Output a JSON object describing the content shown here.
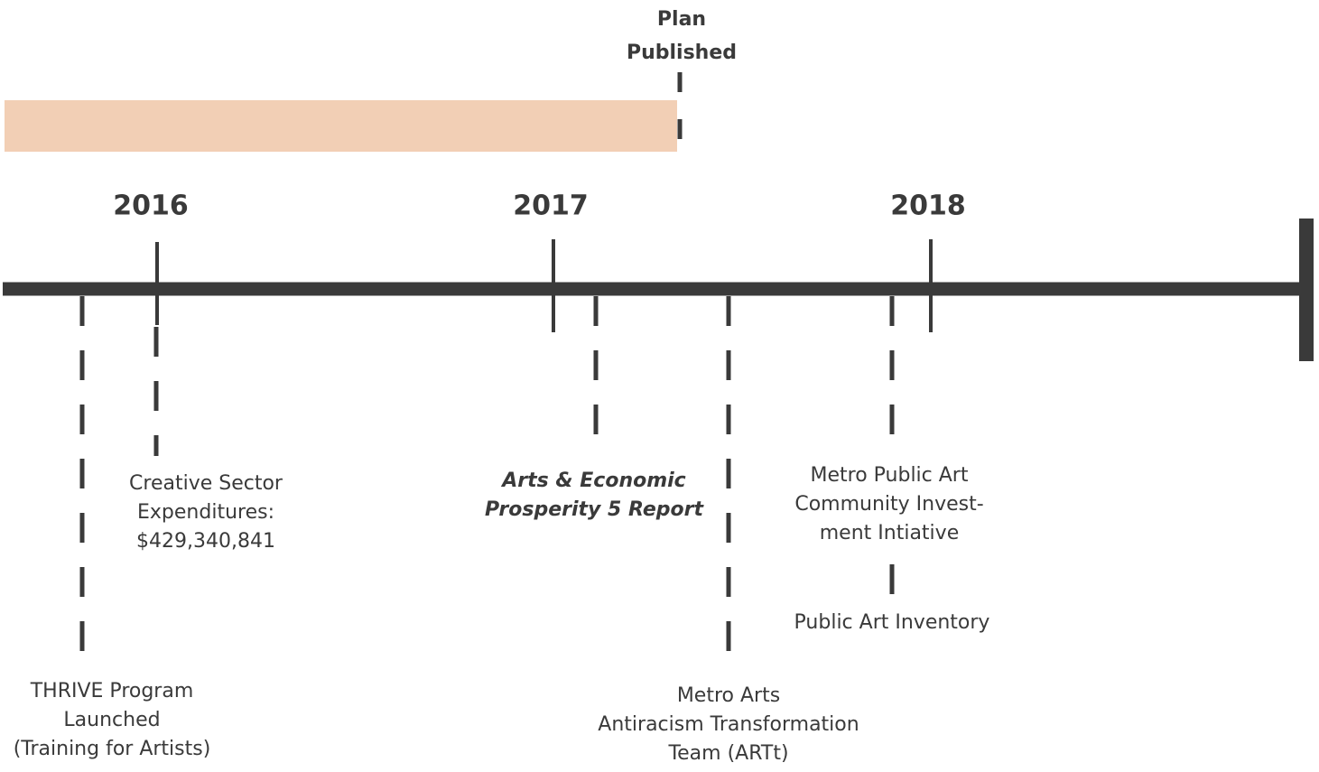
{
  "plan": {
    "label": [
      "Plan",
      "Published"
    ]
  },
  "years": [
    "2016",
    "2017",
    "2018"
  ],
  "events": [
    {
      "lines": [
        "THRIVE Program",
        "Launched",
        "(Training for Artists)"
      ]
    },
    {
      "lines": [
        "Creative Sector",
        "Expenditures:",
        "$429,340,841"
      ]
    },
    {
      "lines": [
        "Arts & Economic",
        "Prosperity 5 Report"
      ]
    },
    {
      "lines": [
        "Metro Arts",
        "Antiracism Transformation",
        "Team (ARTt)"
      ]
    },
    {
      "lines": [
        "Metro Public Art",
        "Community Invest-",
        "ment Intiative"
      ]
    },
    {
      "lines": [
        "Public Art Inventory"
      ]
    }
  ]
}
